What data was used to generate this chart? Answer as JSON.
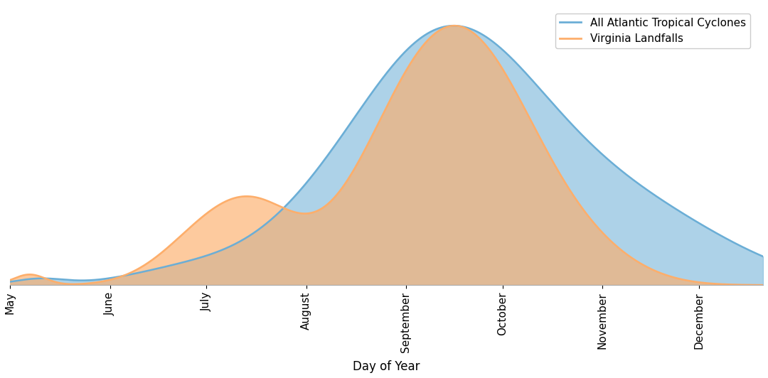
{
  "title": "",
  "xlabel": "Day of Year",
  "ylabel": "",
  "legend_labels": [
    "All Atlantic Tropical Cyclones",
    "Virginia Landfalls"
  ],
  "atlantic_color": "#6baed6",
  "virginia_color": "#fdae6b",
  "atlantic_alpha": 0.55,
  "virginia_alpha": 0.65,
  "atlantic_line_color": "#6baed6",
  "virginia_line_color": "#fdae6b",
  "line_width": 1.8,
  "x_tick_positions": [
    121,
    152,
    182,
    213,
    244,
    274,
    305,
    335
  ],
  "x_tick_labels": [
    "May",
    "June",
    "July",
    "August",
    "September",
    "October",
    "November",
    "December"
  ],
  "x_min": 121,
  "x_max": 355,
  "background_color": "#ffffff"
}
